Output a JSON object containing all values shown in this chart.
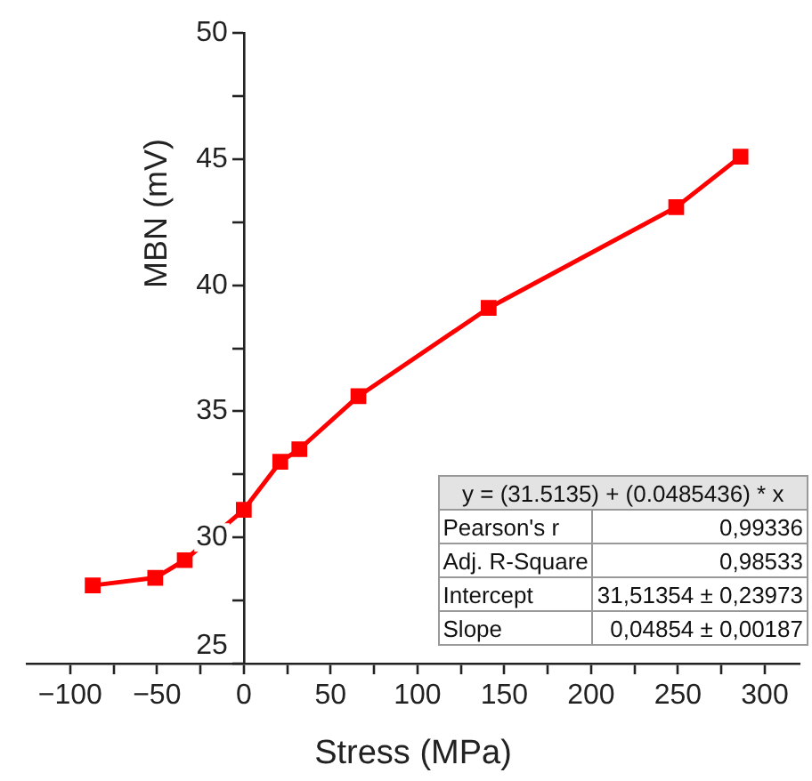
{
  "chart_data": {
    "type": "line",
    "xlabel": "Stress (MPa)",
    "ylabel": "MBN (mV)",
    "x": [
      -87,
      -51,
      -34,
      0,
      21,
      32,
      66,
      141,
      249,
      286
    ],
    "series": [
      {
        "color": "#ff0000",
        "values": [
          28.1,
          28.4,
          29.1,
          31.1,
          33.0,
          33.5,
          35.6,
          39.1,
          43.1,
          45.1
        ]
      }
    ],
    "xlim": [
      -125,
      320
    ],
    "ylim": [
      25,
      50
    ],
    "xticks": [
      -100,
      {
        "value": -75,
        "label": null
      },
      -50,
      {
        "value": -25,
        "label": null
      },
      0,
      {
        "value": 25,
        "label": null
      },
      50,
      {
        "value": 75,
        "label": null
      },
      100,
      {
        "value": 125,
        "label": null
      },
      150,
      {
        "value": 175,
        "label": null
      },
      200,
      {
        "value": 225,
        "label": null
      },
      250,
      {
        "value": 275,
        "label": null
      },
      300
    ],
    "yticks": [
      25,
      {
        "value": 27.5,
        "label": null
      },
      30,
      {
        "value": 32.5,
        "label": null
      },
      35,
      {
        "value": 37.5,
        "label": null
      },
      40,
      {
        "value": 42.5,
        "label": null
      },
      45,
      {
        "value": 47.5,
        "label": null
      },
      50
    ],
    "marker": "square",
    "line_style": "solid",
    "legend": false,
    "annotations": [
      "y = (31.5135) + (0.0485436) * x",
      "Pearson's r",
      "0,99336",
      "Adj. R-Square",
      "0,98533",
      "Intercept",
      "31,51354 ± 0,23973",
      "Slope",
      "0,04854 ± 0,00187"
    ]
  }
}
